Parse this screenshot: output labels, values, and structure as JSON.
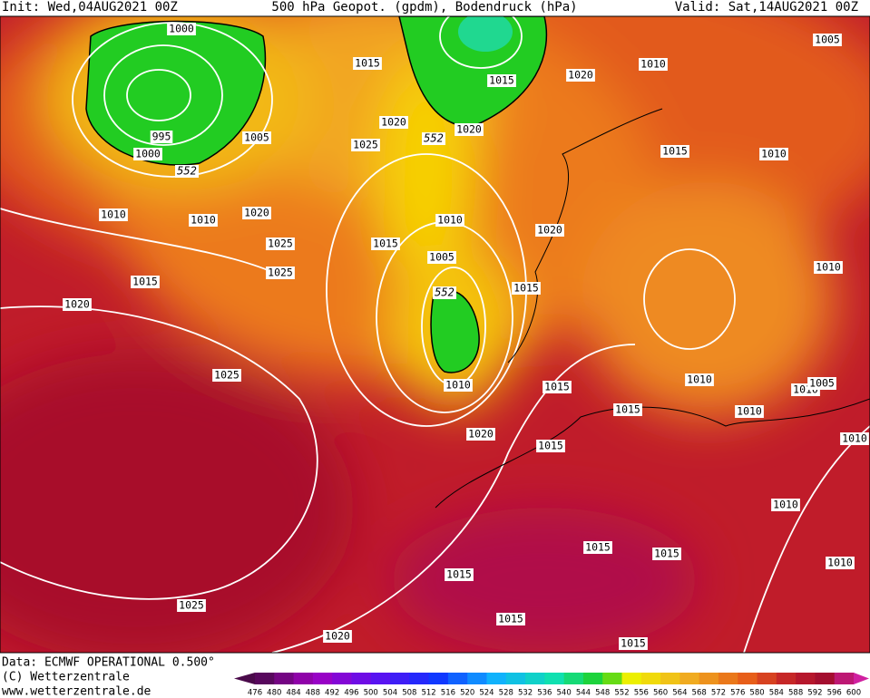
{
  "header": {
    "init": "Init: Wed,04AUG2021 00Z",
    "title": "500 hPa Geopot. (gpdm), Bodendruck (hPa)",
    "valid": "Valid: Sat,14AUG2021 00Z"
  },
  "map": {
    "isobar_labels": [
      "1000",
      "1015",
      "1015",
      "1020",
      "1010",
      "1005",
      "1020",
      "1020",
      "1025",
      "1005",
      "995",
      "1000",
      "1015",
      "1010",
      "1010",
      "1010",
      "1020",
      "1010",
      "1020",
      "1025",
      "1015",
      "1005",
      "1025",
      "1015",
      "1015",
      "1010",
      "1020",
      "1025",
      "1010",
      "1010",
      "1015",
      "1010",
      "1005",
      "1015",
      "1010",
      "1020",
      "1015",
      "1010",
      "1010",
      "1015",
      "1015",
      "1010",
      "1015",
      "1025",
      "1015",
      "1020",
      "1015"
    ],
    "geopotential_labels": [
      "552",
      "552",
      "552"
    ]
  },
  "footer": {
    "data": "Data: ECMWF OPERATIONAL 0.500°",
    "copyright": "(C) Wetterzentrale",
    "url": "www.wetterzentrale.de"
  },
  "colorbar": {
    "labels": [
      "476",
      "480",
      "484",
      "488",
      "492",
      "496",
      "500",
      "504",
      "508",
      "512",
      "516",
      "520",
      "524",
      "528",
      "532",
      "536",
      "540",
      "544",
      "548",
      "552",
      "556",
      "560",
      "564",
      "568",
      "572",
      "576",
      "580",
      "584",
      "588",
      "592",
      "596",
      "600"
    ]
  }
}
